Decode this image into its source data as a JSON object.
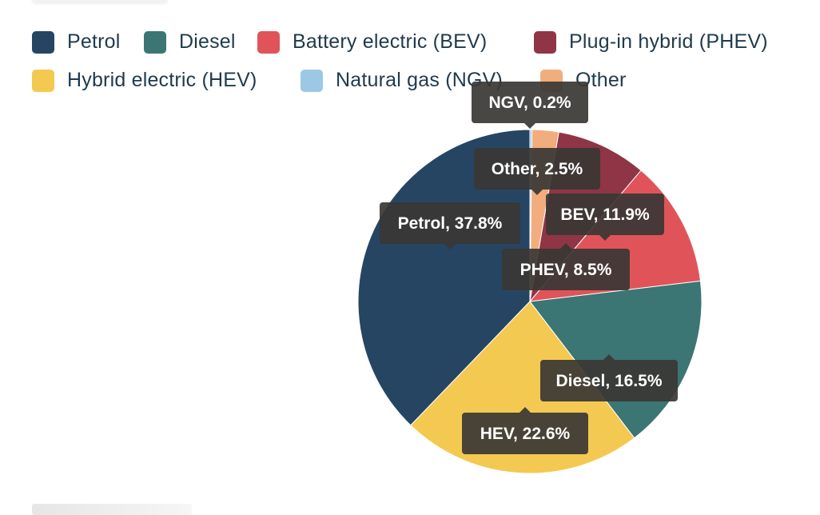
{
  "chart_data": {
    "type": "pie",
    "title": "",
    "legend_placement": "top",
    "slices": [
      {
        "label": "Petrol",
        "short": "Petrol",
        "value": 37.8,
        "color": "#264563"
      },
      {
        "label": "Natural gas (NGV)",
        "short": "NGV",
        "value": 0.2,
        "color": "#9cc8e6"
      },
      {
        "label": "Other",
        "short": "Other",
        "value": 2.5,
        "color": "#f2ad7e"
      },
      {
        "label": "Plug-in hybrid (PHEV)",
        "short": "PHEV",
        "value": 8.5,
        "color": "#8f3545"
      },
      {
        "label": "Battery electric (BEV)",
        "short": "BEV",
        "value": 11.9,
        "color": "#e05459"
      },
      {
        "label": "Diesel",
        "short": "Diesel",
        "value": 16.5,
        "color": "#3b7574"
      },
      {
        "label": "Hybrid electric (HEV)",
        "short": "HEV",
        "value": 22.6,
        "color": "#f3c951"
      }
    ],
    "legend": [
      {
        "label": "Petrol",
        "color": "#264563"
      },
      {
        "label": "Diesel",
        "color": "#3b7574"
      },
      {
        "label": "Battery electric (BEV)",
        "color": "#e05459"
      },
      {
        "label": "Plug-in hybrid (PHEV)",
        "color": "#8f3545"
      },
      {
        "label": "Hybrid electric (HEV)",
        "color": "#f3c951"
      },
      {
        "label": "Natural gas (NGV)",
        "color": "#9cc8e6"
      },
      {
        "label": "Other",
        "color": "#f2ad7e"
      }
    ],
    "tooltips": [
      {
        "text": "NGV, 0.2%"
      },
      {
        "text": "Other, 2.5%"
      },
      {
        "text": "Petrol, 37.8%"
      },
      {
        "text": "BEV, 11.9%"
      },
      {
        "text": "PHEV, 8.5%"
      },
      {
        "text": "Diesel, 16.5%"
      },
      {
        "text": "HEV, 22.6%"
      }
    ]
  }
}
